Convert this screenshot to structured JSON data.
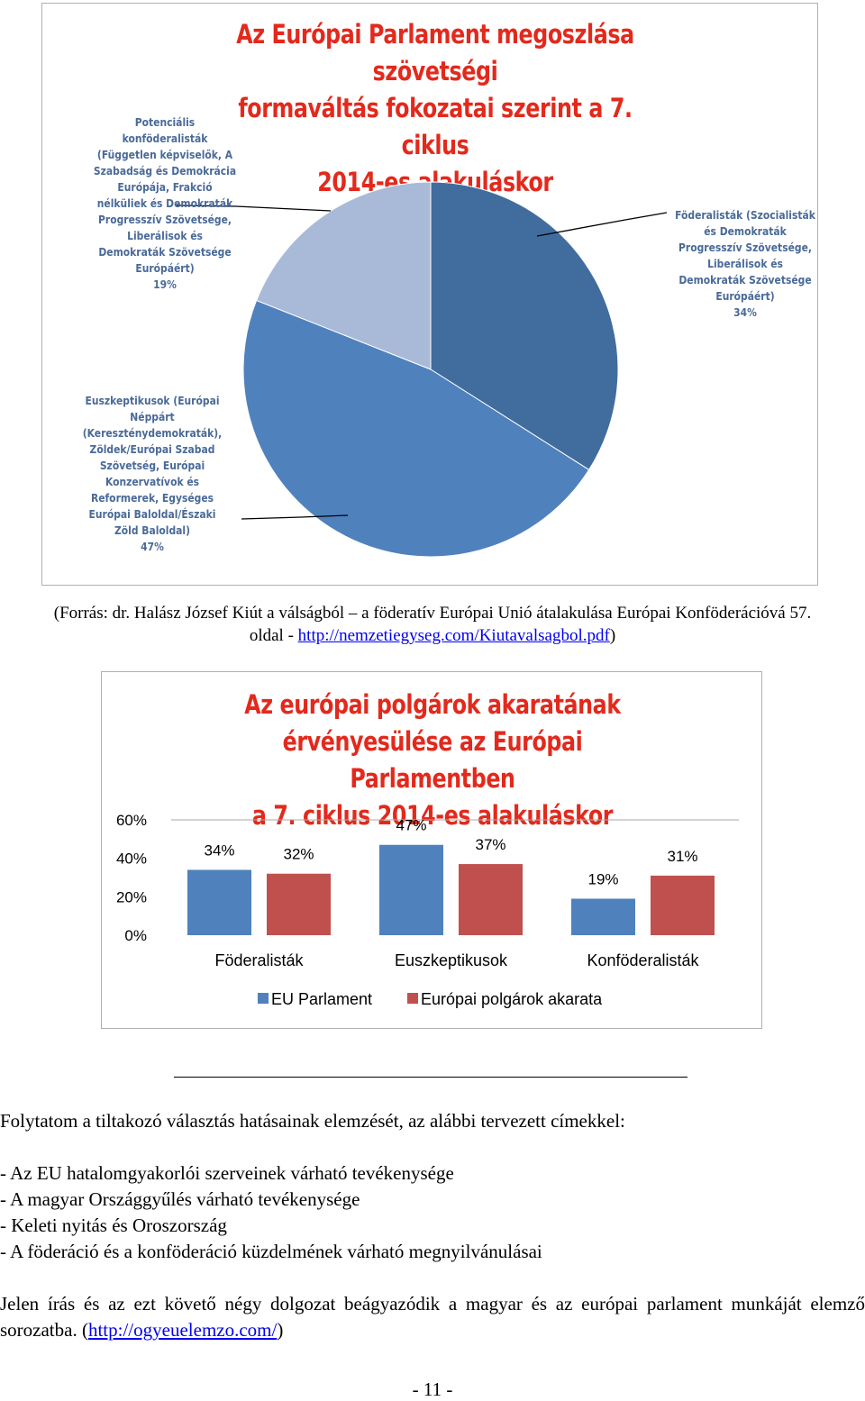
{
  "pie_chart": {
    "title_lines": [
      "Az Európai Parlament megoszlása szövetségi",
      "formaváltás fokozatai szerint a 7. ciklus",
      "2014-es alakuláskor"
    ],
    "colors": [
      "#416d9e",
      "#4f81bd",
      "#a9bad8"
    ],
    "slices": [
      {
        "label_lines": [
          "Föderalisták (Szocialisták",
          "és Demokraták",
          "Progresszív Szövetsége,",
          "Liberálisok és",
          "Demokraták Szövetsége",
          "Európáért)"
        ],
        "percent": "34%",
        "value": 34
      },
      {
        "label_lines": [
          "Euszkeptikusok (Európai",
          "Néppárt",
          "(Kereszténydemokraták),",
          "Zöldek/Európai Szabad",
          "Szövetség, Európai",
          "Konzervatívok és",
          "Reformerek, Egységes",
          "Európai Baloldal/Északi",
          "Zöld Baloldal)"
        ],
        "percent": "47%",
        "value": 47
      },
      {
        "label_lines": [
          "Potenciális",
          "konföderalisták",
          "(Független képviselők, A",
          "Szabadság és Demokrácia",
          "Európája, Frakció",
          "nélküliek és Demokraták",
          "Progresszív Szövetsége,",
          "Liberálisok és",
          "Demokraták Szövetsége",
          "Európáért)"
        ],
        "percent": "19%",
        "value": 19
      }
    ]
  },
  "chart_data": {
    "type": "bar",
    "title": "Az európai polgárok akaratának érvényesülése az Európai Parlamentben a 7. ciklus 2014-es alakuláskor",
    "title_lines": [
      "Az európai polgárok akaratának",
      "érvényesülése az Európai Parlamentben",
      "a 7. ciklus 2014-es alakuláskor"
    ],
    "categories": [
      "Föderalisták",
      "Euszkeptikusok",
      "Konföderalisták"
    ],
    "series": [
      {
        "name": "EU Parlament",
        "values": [
          34,
          47,
          19
        ],
        "labels": [
          "34%",
          "47%",
          "19%"
        ],
        "color": "#4f81bd"
      },
      {
        "name": "Európai polgárok akarata",
        "values": [
          32,
          37,
          31
        ],
        "labels": [
          "32%",
          "37%",
          "31%"
        ],
        "color": "#c0504d"
      }
    ],
    "y_ticks": [
      "0%",
      "20%",
      "40%",
      "60%"
    ],
    "ylim": [
      0,
      60
    ],
    "grid": false,
    "legend": "bottom"
  },
  "source": {
    "line1": "(Forrás: dr. Halász József Kiút a válságból – a föderatív Európai Unió átalakulása Európai Konföderációvá 57.",
    "line2_prefix": "oldal - ",
    "link": "http://nemzetiegyseg.com/Kiutavalsagbol.pdf",
    "line2_suffix": ")"
  },
  "text": {
    "intro": "Folytatom a tiltakozó választás hatásainak elemzését, az alábbi tervezett címekkel:",
    "items": [
      "- Az EU hatalomgyakorlói szerveinek várható tevékenysége",
      "- A magyar Országgyűlés várható tevékenysége",
      "- Keleti nyitás és Oroszország",
      "- A föderáció és a konföderáció küzdelmének várható megnyilvánulásai"
    ],
    "closing": "Jelen írás és az ezt követő négy dolgozat beágyazódik a magyar és az európai parlament munkáját elemző sorozatba. (",
    "closing_link": "http://ogyeuelemzo.com/",
    "closing_suffix": ")",
    "page_number": "- 11 -"
  }
}
